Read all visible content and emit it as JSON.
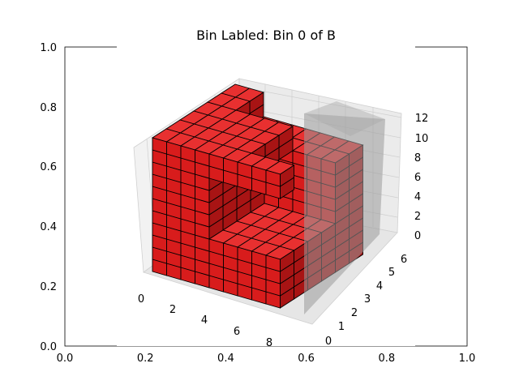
{
  "chart_data": {
    "type": "voxel-3d",
    "title": "Bin Labled: Bin 0 of B",
    "outer_axes": {
      "xlim": [
        0.0,
        1.0
      ],
      "ylim": [
        0.0,
        1.0
      ],
      "xticks": [
        "0.0",
        "0.2",
        "0.4",
        "0.6",
        "0.8",
        "1.0"
      ],
      "yticks": [
        "0.0",
        "0.2",
        "0.4",
        "0.6",
        "0.8",
        "1.0"
      ]
    },
    "axes3d": {
      "x_ticks": [
        "0",
        "2",
        "4",
        "6",
        "8"
      ],
      "y_ticks": [
        "0",
        "1",
        "2",
        "3",
        "4",
        "5",
        "6"
      ],
      "z_ticks": [
        "0",
        "2",
        "4",
        "6",
        "8",
        "10",
        "12"
      ],
      "grid": true
    },
    "voxel_color": "#e41a1c",
    "edge_color": "#000000",
    "container_color": "#b0b0b0",
    "voxel_regions": [
      {
        "x": [
          0,
          9
        ],
        "y": [
          0,
          1
        ],
        "z": [
          0,
          11
        ]
      },
      {
        "x": [
          0,
          9
        ],
        "y": [
          1,
          2
        ],
        "z": [
          0,
          11
        ]
      },
      {
        "x": [
          0,
          9
        ],
        "y": [
          2,
          3
        ],
        "z": [
          0,
          11
        ]
      },
      {
        "x": [
          0,
          9
        ],
        "y": [
          3,
          4
        ],
        "z": [
          0,
          11
        ]
      },
      {
        "x": [
          0,
          9
        ],
        "y": [
          4,
          5
        ],
        "z": [
          0,
          11
        ]
      },
      {
        "x": [
          0,
          9
        ],
        "y": [
          5,
          6
        ],
        "z": [
          0,
          11
        ]
      }
    ]
  }
}
